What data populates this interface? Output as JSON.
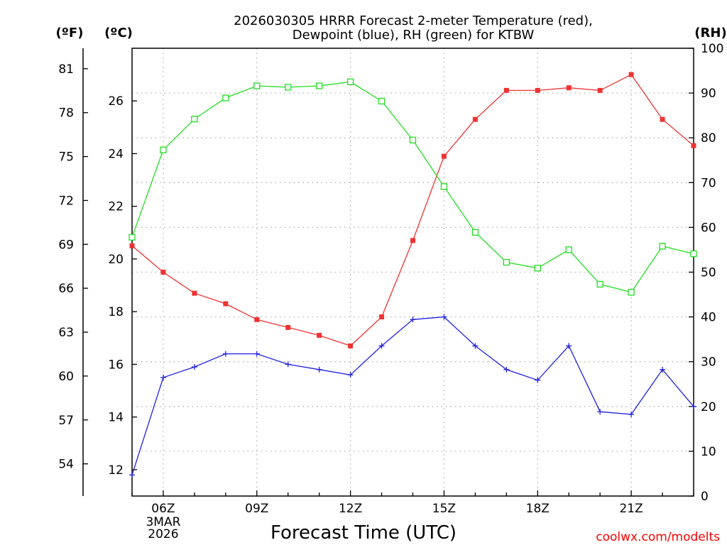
{
  "chart_data": {
    "type": "line",
    "title_lines": [
      "2026030305 HRRR Forecast 2-meter Temperature (red),",
      "Dewpoint (blue), RH (green) for KTBW"
    ],
    "xlabel": "Forecast Time (UTC)",
    "credit": "coolwx.com/modelts",
    "left_outer_axis": {
      "label": "(ºF)",
      "ticks": [
        54,
        57,
        60,
        63,
        66,
        69,
        72,
        75,
        78,
        81
      ],
      "range": [
        51.8,
        82.4
      ]
    },
    "left_inner_axis": {
      "label": "(ºC)",
      "ticks": [
        12,
        14,
        16,
        18,
        20,
        22,
        24,
        26
      ],
      "range": [
        11,
        28
      ]
    },
    "right_axis": {
      "label": "(RH)",
      "ticks": [
        0,
        10,
        20,
        30,
        40,
        50,
        60,
        70,
        80,
        90,
        100
      ],
      "range": [
        0,
        100
      ]
    },
    "x_axis": {
      "range": [
        5,
        23
      ],
      "ticks": [
        {
          "x": 6,
          "label": "06Z"
        },
        {
          "x": 9,
          "label": "09Z"
        },
        {
          "x": 12,
          "label": "12Z"
        },
        {
          "x": 15,
          "label": "15Z"
        },
        {
          "x": 18,
          "label": "18Z"
        },
        {
          "x": 21,
          "label": "21Z"
        }
      ],
      "date_lines": [
        "3MAR",
        "2026"
      ]
    },
    "x": [
      5,
      6,
      7,
      8,
      9,
      10,
      11,
      12,
      13,
      14,
      15,
      16,
      17,
      18,
      19,
      20,
      21,
      22,
      23
    ],
    "series": [
      {
        "name": "Temperature",
        "units": "C",
        "axis": "celsius",
        "color": "#ee3333",
        "marker": "filled-square",
        "values": [
          20.5,
          19.5,
          18.7,
          18.3,
          17.7,
          17.4,
          17.1,
          16.7,
          17.8,
          20.7,
          23.9,
          25.3,
          26.4,
          26.4,
          26.5,
          26.4,
          27.0,
          25.3,
          24.3
        ]
      },
      {
        "name": "Dewpoint",
        "units": "C",
        "axis": "celsius",
        "color": "#2222dd",
        "marker": "plus",
        "values": [
          11.8,
          15.5,
          15.9,
          16.4,
          16.4,
          16.0,
          15.8,
          15.6,
          16.7,
          17.7,
          17.8,
          16.7,
          15.8,
          15.4,
          16.7,
          14.2,
          14.1,
          15.8,
          14.4
        ]
      },
      {
        "name": "Relative Humidity",
        "units": "%",
        "axis": "rh",
        "color": "#22dd22",
        "marker": "open-square",
        "values": [
          57.8,
          77.3,
          84.2,
          88.9,
          91.6,
          91.3,
          91.6,
          92.5,
          88.2,
          79.5,
          69.1,
          58.9,
          52.2,
          50.9,
          55.0,
          47.3,
          45.5,
          55.8,
          54.1
        ]
      }
    ]
  }
}
